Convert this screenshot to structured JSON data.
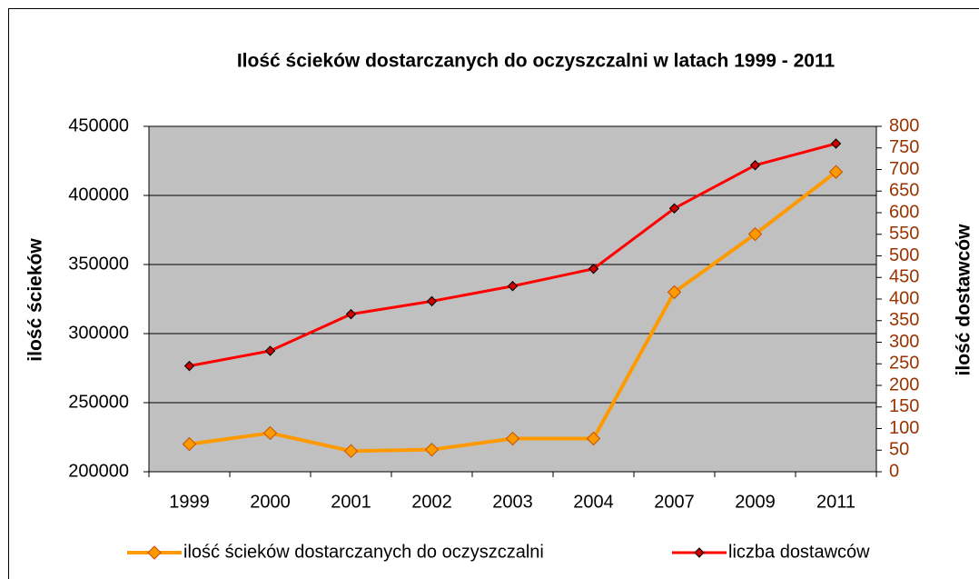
{
  "chart_data": {
    "type": "line",
    "title": "Ilość ścieków dostarczanych do oczyszczalni w latach 1999 - 2011",
    "y_label": "ilość ścieków",
    "y2_label": "ilość dostawców",
    "categories": [
      "1999",
      "2000",
      "2001",
      "2002",
      "2003",
      "2004",
      "2007",
      "2009",
      "2011"
    ],
    "series": [
      {
        "name": "ilość ścieków dostarczanych do oczyszczalni",
        "color": "#ff9900",
        "marker_color": "#ff9900",
        "axis": "y",
        "values": [
          220000,
          228000,
          215000,
          216000,
          224000,
          224000,
          330000,
          372000,
          417000
        ]
      },
      {
        "name": "liczba dostawców",
        "color": "#ff0000",
        "marker_color": "#cc0000",
        "axis": "y2",
        "values": [
          245,
          280,
          365,
          395,
          430,
          470,
          610,
          710,
          760
        ]
      }
    ],
    "ylim": [
      200000,
      450000
    ],
    "yticks": [
      200000,
      250000,
      300000,
      350000,
      400000,
      450000
    ],
    "y2lim": [
      0,
      800
    ],
    "y2ticks": [
      0,
      50,
      100,
      150,
      200,
      250,
      300,
      350,
      400,
      450,
      500,
      550,
      600,
      650,
      700,
      750,
      800
    ],
    "y2_color": "#993300",
    "grid": true,
    "legend": "bottom"
  }
}
